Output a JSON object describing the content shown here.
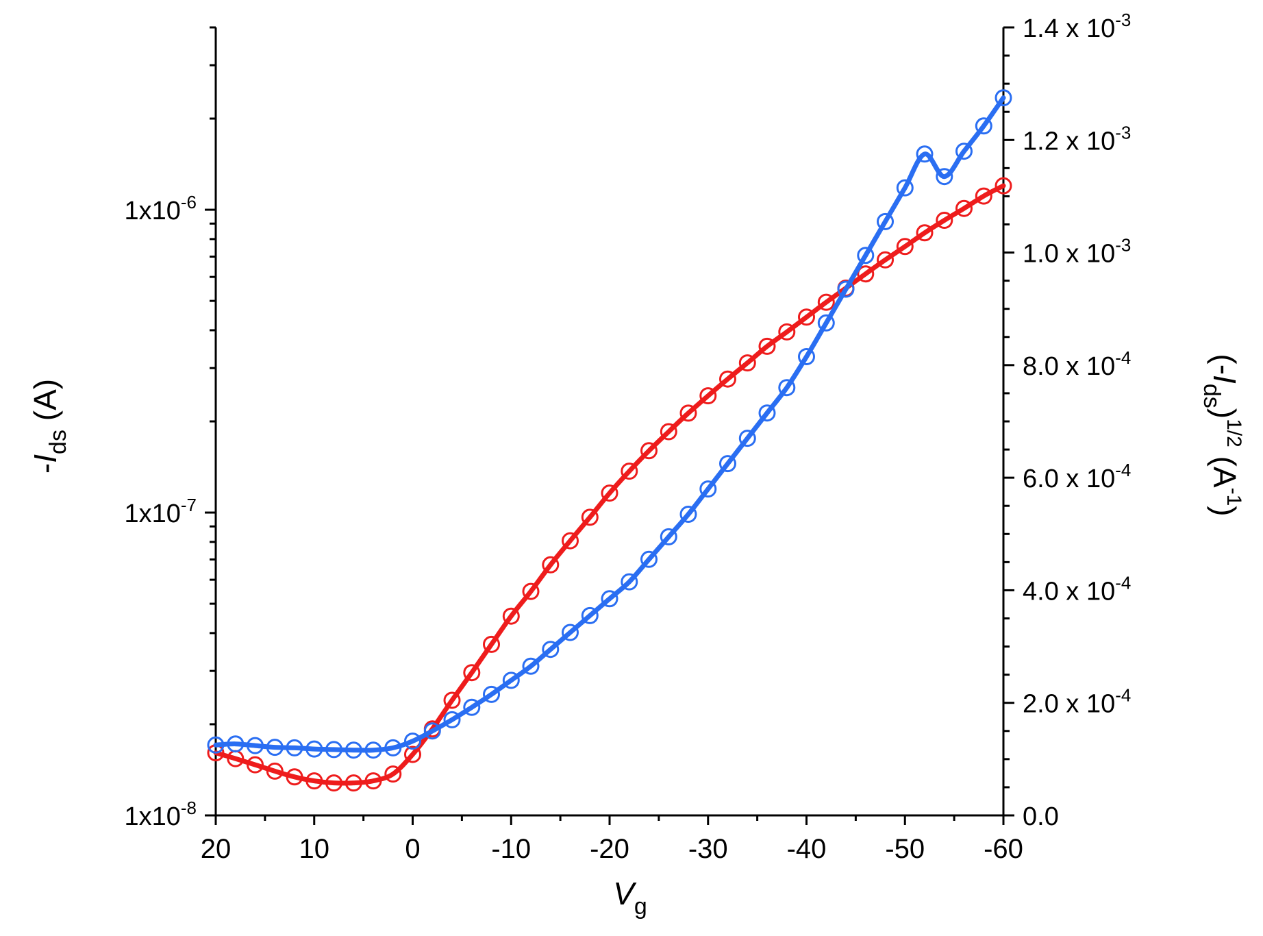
{
  "chart_data": {
    "type": "line",
    "x_label": {
      "main": "V",
      "sub": "g"
    },
    "left_label": {
      "prefix": "-",
      "main": "I",
      "sub": "ds",
      "suffix": " (A)"
    },
    "right_label": {
      "open": "(-",
      "main": "I",
      "sub": "ds",
      "close": ")",
      "sup": "1/2",
      "unit_open": " (A",
      "unit_sup": "-1",
      "unit_close": ")"
    },
    "x_axis": {
      "range": [
        20,
        -60
      ],
      "ticks": [
        20,
        10,
        0,
        -10,
        -20,
        -30,
        -40,
        -50,
        -60
      ],
      "tick_labels": [
        "20",
        "10",
        "0",
        "-10",
        "-20",
        "-30",
        "-40",
        "-50",
        "-60"
      ]
    },
    "left_axis": {
      "scale": "log",
      "range": [
        1e-08,
        4e-06
      ],
      "ticks": [
        {
          "value": 1e-08,
          "base": "1x10",
          "exp": "-8"
        },
        {
          "value": 1e-07,
          "base": "1x10",
          "exp": "-7"
        },
        {
          "value": 1e-06,
          "base": "1x10",
          "exp": "-6"
        }
      ]
    },
    "right_axis": {
      "scale": "linear",
      "range": [
        0,
        0.0014
      ],
      "ticks": [
        {
          "value": 0,
          "base": "0.0",
          "exp": ""
        },
        {
          "value": 0.0002,
          "base": "2.0 x 10",
          "exp": "-4"
        },
        {
          "value": 0.0004,
          "base": "4.0 x 10",
          "exp": "-4"
        },
        {
          "value": 0.0006,
          "base": "6.0 x 10",
          "exp": "-4"
        },
        {
          "value": 0.0008,
          "base": "8.0 x 10",
          "exp": "-4"
        },
        {
          "value": 0.001,
          "base": "1.0 x 10",
          "exp": "-3"
        },
        {
          "value": 0.0012,
          "base": "1.2 x 10",
          "exp": "-3"
        },
        {
          "value": 0.0014,
          "base": "1.4 x 10",
          "exp": "-3"
        }
      ]
    },
    "series": [
      {
        "axis": "left",
        "color": "#ee1c1c",
        "x": [
          20,
          18,
          16,
          14,
          12,
          10,
          8,
          6,
          4,
          2,
          0,
          -2,
          -4,
          -6,
          -8,
          -10,
          -12,
          -14,
          -16,
          -18,
          -20,
          -22,
          -24,
          -26,
          -28,
          -30,
          -32,
          -34,
          -36,
          -38,
          -40,
          -42,
          -44,
          -46,
          -48,
          -50,
          -52,
          -54,
          -56,
          -58,
          -60
        ],
        "y": [
          1.61e-08,
          1.54e-08,
          1.47e-08,
          1.4e-08,
          1.34e-08,
          1.3e-08,
          1.28e-08,
          1.28e-08,
          1.3e-08,
          1.37e-08,
          1.59e-08,
          1.93e-08,
          2.4e-08,
          2.96e-08,
          3.67e-08,
          4.55e-08,
          5.49e-08,
          6.72e-08,
          8.07e-08,
          9.65e-08,
          1.16e-07,
          1.37e-07,
          1.6e-07,
          1.85e-07,
          2.13e-07,
          2.43e-07,
          2.76e-07,
          3.12e-07,
          3.54e-07,
          3.95e-07,
          4.42e-07,
          4.95e-07,
          5.51e-07,
          6.14e-07,
          6.83e-07,
          7.56e-07,
          8.39e-07,
          9.23e-07,
          1.01e-06,
          1.11e-06,
          1.2e-06
        ]
      },
      {
        "axis": "right",
        "color": "#2a6ef2",
        "x": [
          20,
          18,
          16,
          14,
          12,
          10,
          8,
          6,
          4,
          2,
          0,
          -2,
          -4,
          -6,
          -8,
          -10,
          -12,
          -14,
          -16,
          -18,
          -20,
          -22,
          -24,
          -26,
          -28,
          -30,
          -32,
          -34,
          -36,
          -38,
          -40,
          -42,
          -44,
          -46,
          -48,
          -50,
          -52,
          -54,
          -56,
          -58,
          -60
        ],
        "y": [
          0.000125,
          0.000127,
          0.000124,
          0.000121,
          0.00012,
          0.000118,
          0.000117,
          0.000116,
          0.000116,
          0.00012,
          0.000132,
          0.00015,
          0.00017,
          0.000192,
          0.000215,
          0.00024,
          0.000265,
          0.000295,
          0.000325,
          0.000355,
          0.000385,
          0.000415,
          0.000455,
          0.000495,
          0.000535,
          0.00058,
          0.000625,
          0.00067,
          0.000715,
          0.00076,
          0.000815,
          0.000875,
          0.000935,
          0.000995,
          0.001055,
          0.001115,
          0.001175,
          0.001135,
          0.00118,
          0.001225,
          0.001275
        ]
      }
    ]
  }
}
